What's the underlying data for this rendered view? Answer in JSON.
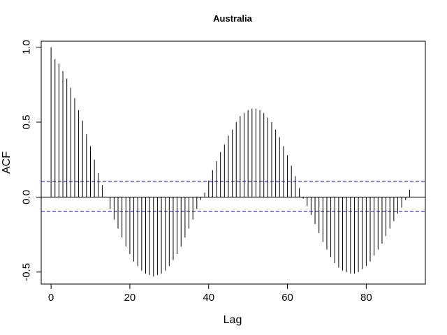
{
  "chart_data": {
    "type": "bar",
    "title": "Australia",
    "xlabel": "Lag",
    "ylabel": "ACF",
    "xlim": [
      -2.5,
      95
    ],
    "ylim": [
      -0.58,
      1.04
    ],
    "x_ticks": [
      0,
      20,
      40,
      60,
      80
    ],
    "y_ticks": [
      -0.5,
      0.0,
      0.5,
      1.0
    ],
    "x_tick_labels": [
      "0",
      "20",
      "40",
      "60",
      "80"
    ],
    "y_tick_labels": [
      "-0.5",
      "0.0",
      "0.5",
      "1.0"
    ],
    "ci_bounds": [
      0.105,
      -0.095
    ],
    "grid": false,
    "colors": {
      "bars": "#000000",
      "ci": "#0000cc",
      "zero_line": "#000000"
    },
    "lags": [
      0,
      1,
      2,
      3,
      4,
      5,
      6,
      7,
      8,
      9,
      10,
      11,
      12,
      13,
      14,
      15,
      16,
      17,
      18,
      19,
      20,
      21,
      22,
      23,
      24,
      25,
      26,
      27,
      28,
      29,
      30,
      31,
      32,
      33,
      34,
      35,
      36,
      37,
      38,
      39,
      40,
      41,
      42,
      43,
      44,
      45,
      46,
      47,
      48,
      49,
      50,
      51,
      52,
      53,
      54,
      55,
      56,
      57,
      58,
      59,
      60,
      61,
      62,
      63,
      64,
      65,
      66,
      67,
      68,
      69,
      70,
      71,
      72,
      73,
      74,
      75,
      76,
      77,
      78,
      79,
      80,
      81,
      82,
      83,
      84,
      85,
      86,
      87,
      88,
      89,
      90,
      91
    ],
    "values": [
      1.0,
      0.92,
      0.89,
      0.84,
      0.79,
      0.73,
      0.66,
      0.58,
      0.51,
      0.42,
      0.34,
      0.25,
      0.16,
      0.08,
      0.0,
      -0.08,
      -0.15,
      -0.21,
      -0.27,
      -0.33,
      -0.38,
      -0.43,
      -0.46,
      -0.49,
      -0.51,
      -0.52,
      -0.53,
      -0.52,
      -0.51,
      -0.49,
      -0.46,
      -0.42,
      -0.38,
      -0.33,
      -0.27,
      -0.21,
      -0.15,
      -0.08,
      -0.02,
      0.03,
      0.11,
      0.18,
      0.24,
      0.3,
      0.35,
      0.41,
      0.45,
      0.5,
      0.54,
      0.56,
      0.58,
      0.59,
      0.59,
      0.58,
      0.56,
      0.53,
      0.5,
      0.45,
      0.4,
      0.34,
      0.28,
      0.21,
      0.14,
      0.06,
      -0.01,
      -0.06,
      -0.12,
      -0.18,
      -0.24,
      -0.3,
      -0.35,
      -0.4,
      -0.44,
      -0.47,
      -0.49,
      -0.5,
      -0.51,
      -0.51,
      -0.5,
      -0.48,
      -0.46,
      -0.43,
      -0.39,
      -0.35,
      -0.31,
      -0.26,
      -0.21,
      -0.16,
      -0.11,
      -0.07,
      -0.02,
      0.05
    ]
  }
}
